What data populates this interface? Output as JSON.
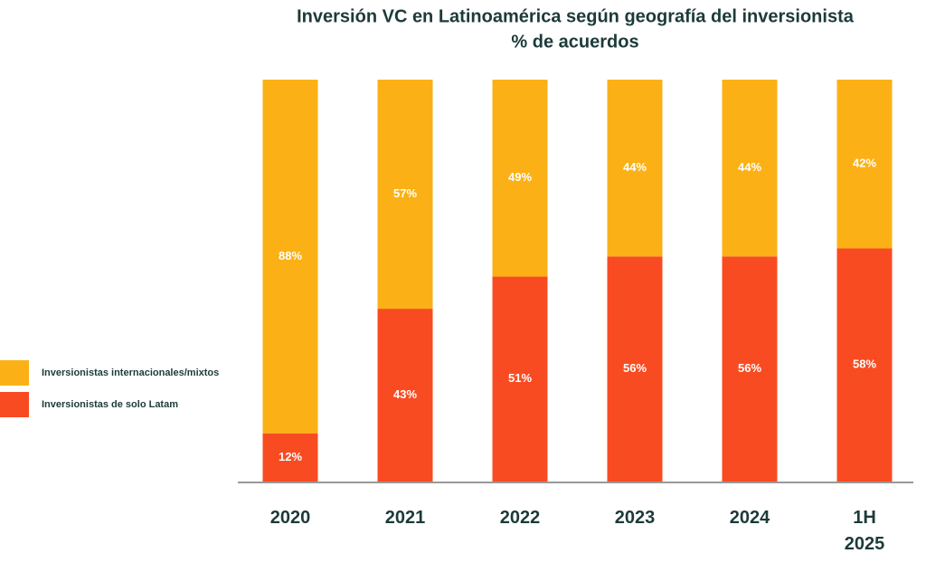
{
  "chart_data": {
    "type": "stacked-bar",
    "title": "Inversión VC en Latinoamérica según geografía del inversionista",
    "subtitle": "% de acuerdos",
    "categories": [
      "2020",
      "2021",
      "2022",
      "2023",
      "2024",
      "1H 2025"
    ],
    "series": [
      {
        "name": "Inversionistas de solo Latam",
        "color": "#f94b22",
        "values": [
          12,
          43,
          51,
          56,
          56,
          58
        ],
        "value_labels": [
          "12%",
          "43%",
          "51%",
          "56%",
          "56%",
          "58%"
        ]
      },
      {
        "name": "Inversionistas internacionales/mixtos",
        "color": "#fbb116",
        "values": [
          88,
          57,
          49,
          44,
          44,
          42
        ],
        "value_labels": [
          "88%",
          "57%",
          "49%",
          "44%",
          "44%",
          "42%"
        ]
      }
    ],
    "legend": "left"
  }
}
